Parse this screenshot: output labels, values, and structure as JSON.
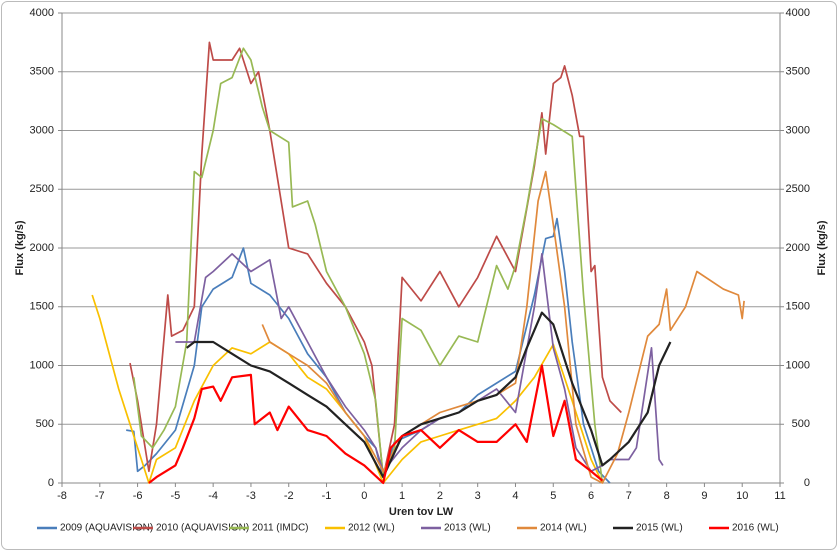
{
  "chart_data": {
    "type": "line",
    "x_label": "Uren tov LW",
    "y_label": "Flux (kg/s)",
    "y2_label": "Flux (kg/s)",
    "xlim": [
      -8,
      11
    ],
    "xticks": [
      -8,
      -7,
      -6,
      -5,
      -4,
      -3,
      -2,
      -1,
      0,
      1,
      2,
      3,
      4,
      5,
      6,
      7,
      8,
      9,
      10,
      11
    ],
    "ylim": [
      0,
      4000
    ],
    "yticks": [
      0,
      500,
      1000,
      1500,
      2000,
      2500,
      3000,
      3500,
      4000
    ],
    "y2lim": [
      0,
      4000
    ],
    "y2ticks": [
      0,
      500,
      1000,
      1500,
      2000,
      2500,
      3000,
      3500,
      4000
    ],
    "grid": true,
    "legend": "bottom",
    "series": [
      {
        "name": "2009 (AQUAVISION)",
        "color": "#4a7ebb",
        "x": [
          -6.3,
          -6.1,
          -6.0,
          -5.8,
          -5.5,
          -5.0,
          -4.5,
          -4.3,
          -4.0,
          -3.5,
          -3.2,
          -3.0,
          -2.5,
          -2.0,
          -1.5,
          -1.0,
          -0.5,
          0,
          0.3,
          0.5,
          0.8,
          1.5,
          2.0,
          2.5,
          3.0,
          3.5,
          4.0,
          4.5,
          4.8,
          5.0,
          5.1,
          5.3,
          5.5,
          5.8,
          6.0,
          6.2,
          6.5
        ],
        "values": [
          450,
          440,
          100,
          150,
          250,
          450,
          1000,
          1500,
          1650,
          1750,
          2000,
          1700,
          1600,
          1400,
          1100,
          900,
          600,
          400,
          300,
          50,
          350,
          450,
          550,
          600,
          750,
          850,
          950,
          1600,
          2080,
          2100,
          2250,
          1800,
          1200,
          500,
          300,
          100,
          0
        ]
      },
      {
        "name": "2010 (AQUAVISION)",
        "color": "#be4b48",
        "x": [
          -6.2,
          -6.0,
          -5.7,
          -5.5,
          -5.2,
          -5.1,
          -4.8,
          -4.5,
          -4.3,
          -4.1,
          -4.0,
          -3.5,
          -3.3,
          -3.0,
          -2.8,
          -2.5,
          -2.0,
          -1.5,
          -1.0,
          -0.5,
          0,
          0.2,
          0.5,
          0.8,
          1.0,
          1.5,
          2.0,
          2.5,
          3.0,
          3.5,
          4.0,
          4.5,
          4.7,
          4.8,
          5.0,
          5.2,
          5.3,
          5.5,
          5.7,
          5.8,
          6.0,
          6.1,
          6.3,
          6.5,
          6.8
        ],
        "values": [
          1020,
          700,
          100,
          500,
          1600,
          1250,
          1300,
          1500,
          2800,
          3750,
          3600,
          3600,
          3700,
          3400,
          3500,
          3000,
          2000,
          1950,
          1700,
          1500,
          1200,
          1000,
          50,
          500,
          1750,
          1550,
          1800,
          1500,
          1750,
          2100,
          1800,
          2700,
          3150,
          2800,
          3400,
          3450,
          3550,
          3300,
          2950,
          2950,
          1800,
          1850,
          900,
          700,
          600
        ]
      },
      {
        "name": "2011 (IMDC)",
        "color": "#98b954",
        "x": [
          -6.1,
          -5.9,
          -5.6,
          -5.3,
          -5.0,
          -4.7,
          -4.5,
          -4.3,
          -4.0,
          -3.8,
          -3.5,
          -3.2,
          -3.0,
          -2.7,
          -2.5,
          -2.0,
          -1.9,
          -1.5,
          -1.3,
          -1.0,
          -0.5,
          0,
          0.3,
          0.5,
          0.8,
          1.0,
          1.5,
          2.0,
          2.5,
          3.0,
          3.5,
          3.8,
          4.0,
          4.3,
          4.7,
          5.0,
          5.5,
          5.8,
          6.1,
          6.3
        ],
        "values": [
          900,
          400,
          300,
          450,
          650,
          1200,
          2650,
          2600,
          3000,
          3400,
          3450,
          3700,
          3600,
          3200,
          3000,
          2900,
          2350,
          2400,
          2200,
          1800,
          1500,
          1100,
          700,
          50,
          300,
          1400,
          1300,
          1000,
          1250,
          1200,
          1850,
          1650,
          1850,
          2350,
          3100,
          3050,
          2950,
          1600,
          500,
          0
        ]
      },
      {
        "name": "2012 (WL)",
        "color": "#f9c000",
        "x": [
          -7.2,
          -7.0,
          -6.5,
          -6.0,
          -5.7,
          -5.5,
          -5.0,
          -4.5,
          -4.0,
          -3.5,
          -3.0,
          -2.5,
          -2.0,
          -1.5,
          -1.0,
          -0.5,
          0,
          0.5,
          1.0,
          1.5,
          2.0,
          2.5,
          3.0,
          3.5,
          4.0,
          4.5,
          5.0,
          5.5,
          6.0,
          6.3
        ],
        "values": [
          1600,
          1400,
          800,
          300,
          0,
          200,
          300,
          700,
          1000,
          1150,
          1100,
          1200,
          1100,
          900,
          800,
          600,
          400,
          0,
          200,
          350,
          400,
          450,
          500,
          550,
          700,
          900,
          1180,
          700,
          200,
          0
        ]
      },
      {
        "name": "2013 (WL)",
        "color": "#7d60a0",
        "x": [
          -5.0,
          -4.5,
          -4.2,
          -4.0,
          -3.5,
          -3.0,
          -2.5,
          -2.2,
          -2.0,
          -1.5,
          -1.0,
          -0.5,
          0,
          0.3,
          0.5,
          1.0,
          1.5,
          2.0,
          2.5,
          3.0,
          3.5,
          4.0,
          4.5,
          4.7,
          5.0,
          5.3,
          5.6,
          6.0,
          6.3,
          6.5,
          7.0,
          7.2,
          7.6,
          7.8,
          7.9
        ],
        "values": [
          1200,
          1200,
          1750,
          1800,
          1950,
          1800,
          1900,
          1400,
          1500,
          1200,
          900,
          650,
          450,
          300,
          100,
          300,
          450,
          550,
          600,
          700,
          800,
          600,
          1500,
          1950,
          1150,
          800,
          300,
          100,
          150,
          200,
          200,
          300,
          1150,
          200,
          150
        ]
      },
      {
        "name": "2014 (WL)",
        "color": "#e0893c",
        "x": [
          -2.7,
          -2.5,
          -2.0,
          -1.5,
          -1.0,
          -0.5,
          0,
          0.5,
          1.0,
          1.5,
          2.0,
          2.5,
          3.0,
          3.5,
          4.0,
          4.3,
          4.6,
          4.8,
          5.0,
          5.3,
          5.6,
          6.0,
          6.3,
          6.7,
          7.0,
          7.5,
          7.8,
          8.0,
          8.1,
          8.5,
          8.8,
          9.5,
          9.9,
          10.0,
          10.05
        ],
        "values": [
          1350,
          1200,
          1100,
          1000,
          850,
          600,
          400,
          100,
          400,
          500,
          600,
          650,
          700,
          750,
          850,
          1500,
          2400,
          2650,
          2200,
          1500,
          500,
          50,
          0,
          250,
          600,
          1250,
          1350,
          1650,
          1300,
          1500,
          1800,
          1650,
          1600,
          1400,
          1550
        ]
      },
      {
        "name": "2015 (WL)",
        "color": "#222222",
        "x": [
          -4.7,
          -4.5,
          -4.0,
          -3.5,
          -3.0,
          -2.5,
          -2.0,
          -1.5,
          -1.0,
          -0.5,
          0,
          0.5,
          1.0,
          1.5,
          2.0,
          2.5,
          3.0,
          3.5,
          4.0,
          4.3,
          4.7,
          5.0,
          5.5,
          6.0,
          6.3,
          6.5,
          7.0,
          7.5,
          7.8,
          8.1
        ],
        "values": [
          1150,
          1200,
          1200,
          1100,
          1000,
          950,
          850,
          750,
          650,
          500,
          350,
          50,
          400,
          500,
          550,
          600,
          700,
          750,
          900,
          1150,
          1450,
          1350,
          850,
          450,
          150,
          200,
          350,
          600,
          1000,
          1200
        ]
      },
      {
        "name": "2016 (WL)",
        "color": "#ff0000",
        "x": [
          -5.7,
          -5.5,
          -5.0,
          -4.8,
          -4.5,
          -4.3,
          -4.0,
          -3.8,
          -3.5,
          -3.0,
          -2.9,
          -2.5,
          -2.3,
          -2.0,
          -1.5,
          -1.0,
          -0.5,
          0,
          0.5,
          0.7,
          1.0,
          1.5,
          2.0,
          2.5,
          3.0,
          3.5,
          4.0,
          4.3,
          4.7,
          5.0,
          5.3,
          5.6,
          6.0,
          6.3
        ],
        "values": [
          0,
          50,
          150,
          300,
          550,
          800,
          820,
          700,
          900,
          920,
          500,
          600,
          450,
          650,
          450,
          400,
          250,
          150,
          0,
          300,
          400,
          450,
          300,
          450,
          350,
          350,
          500,
          350,
          1000,
          400,
          700,
          200,
          100,
          20
        ]
      }
    ]
  }
}
